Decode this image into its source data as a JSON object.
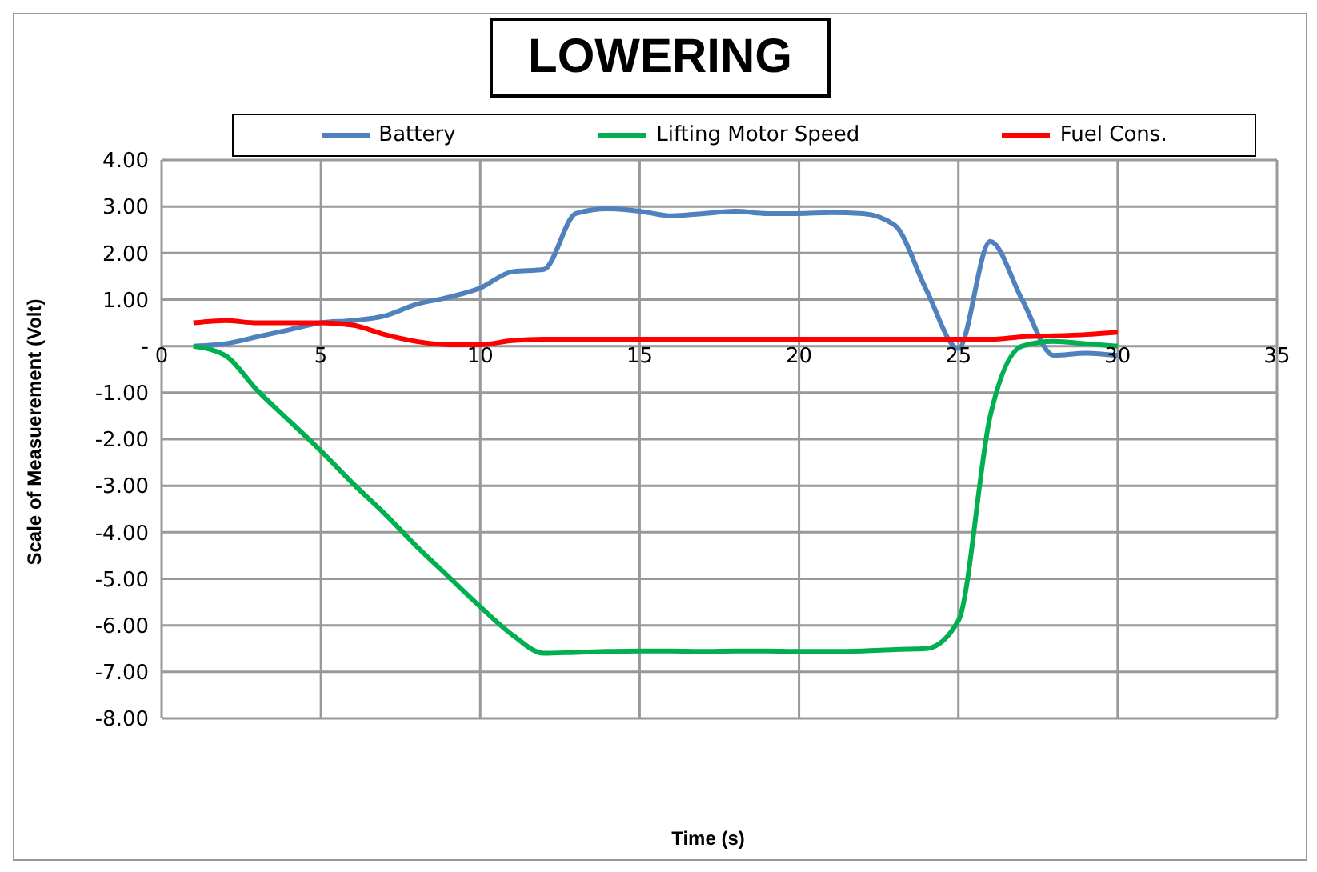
{
  "chart_data": {
    "type": "line",
    "title": "LOWERING",
    "xlabel": "Time (s)",
    "ylabel": "Scale of Measuerement (Volt)",
    "x": [
      1,
      2,
      3,
      4,
      5,
      6,
      7,
      8,
      9,
      10,
      11,
      12,
      13,
      14,
      15,
      16,
      17,
      18,
      19,
      20,
      21,
      22,
      23,
      24,
      25,
      26,
      27,
      28,
      29,
      30
    ],
    "series": [
      {
        "name": "Battery",
        "color": "#4f81bd",
        "values": [
          0,
          0.05,
          0.2,
          0.35,
          0.5,
          0.55,
          0.65,
          0.9,
          1.05,
          1.25,
          1.6,
          1.65,
          2.85,
          2.95,
          2.9,
          2.8,
          2.85,
          2.9,
          2.85,
          2.85,
          2.87,
          2.85,
          2.6,
          1.2,
          -0.05,
          2.25,
          1.0,
          -0.2,
          -0.15,
          -0.2
        ]
      },
      {
        "name": "Lifting Motor Speed",
        "color": "#00b050",
        "values": [
          0,
          -0.2,
          -0.95,
          -1.6,
          -2.25,
          -2.95,
          -3.6,
          -4.3,
          -4.95,
          -5.6,
          -6.2,
          -6.6,
          -6.58,
          -6.56,
          -6.55,
          -6.55,
          -6.56,
          -6.55,
          -6.55,
          -6.56,
          -6.56,
          -6.55,
          -6.52,
          -6.5,
          -5.9,
          -1.5,
          0.0,
          0.1,
          0.05,
          0.0
        ]
      },
      {
        "name": "Fuel Cons.",
        "color": "#ff0000",
        "values": [
          0.5,
          0.55,
          0.5,
          0.5,
          0.5,
          0.45,
          0.25,
          0.1,
          0.03,
          0.03,
          0.12,
          0.15,
          0.15,
          0.15,
          0.15,
          0.15,
          0.15,
          0.15,
          0.15,
          0.15,
          0.15,
          0.15,
          0.15,
          0.15,
          0.15,
          0.15,
          0.2,
          0.22,
          0.25,
          0.3
        ]
      }
    ],
    "xlim": [
      0,
      35
    ],
    "xticks": [
      0,
      5,
      10,
      15,
      20,
      25,
      30,
      35
    ],
    "ylim": [
      -8,
      4
    ],
    "yticks": [
      {
        "value": -8,
        "label": "-8.00"
      },
      {
        "value": -7,
        "label": "-7.00"
      },
      {
        "value": -6,
        "label": "-6.00"
      },
      {
        "value": -5,
        "label": "-5.00"
      },
      {
        "value": -4,
        "label": "-4.00"
      },
      {
        "value": -3,
        "label": "-3.00"
      },
      {
        "value": -2,
        "label": "-2.00"
      },
      {
        "value": -1,
        "label": "-1.00"
      },
      {
        "value": 0,
        "label": "-"
      },
      {
        "value": 1,
        "label": "1.00"
      },
      {
        "value": 2,
        "label": "2.00"
      },
      {
        "value": 3,
        "label": "3.00"
      },
      {
        "value": 4,
        "label": "4.00"
      }
    ],
    "grid": true,
    "legend": "top",
    "marker": "none",
    "line_style": "solid"
  }
}
